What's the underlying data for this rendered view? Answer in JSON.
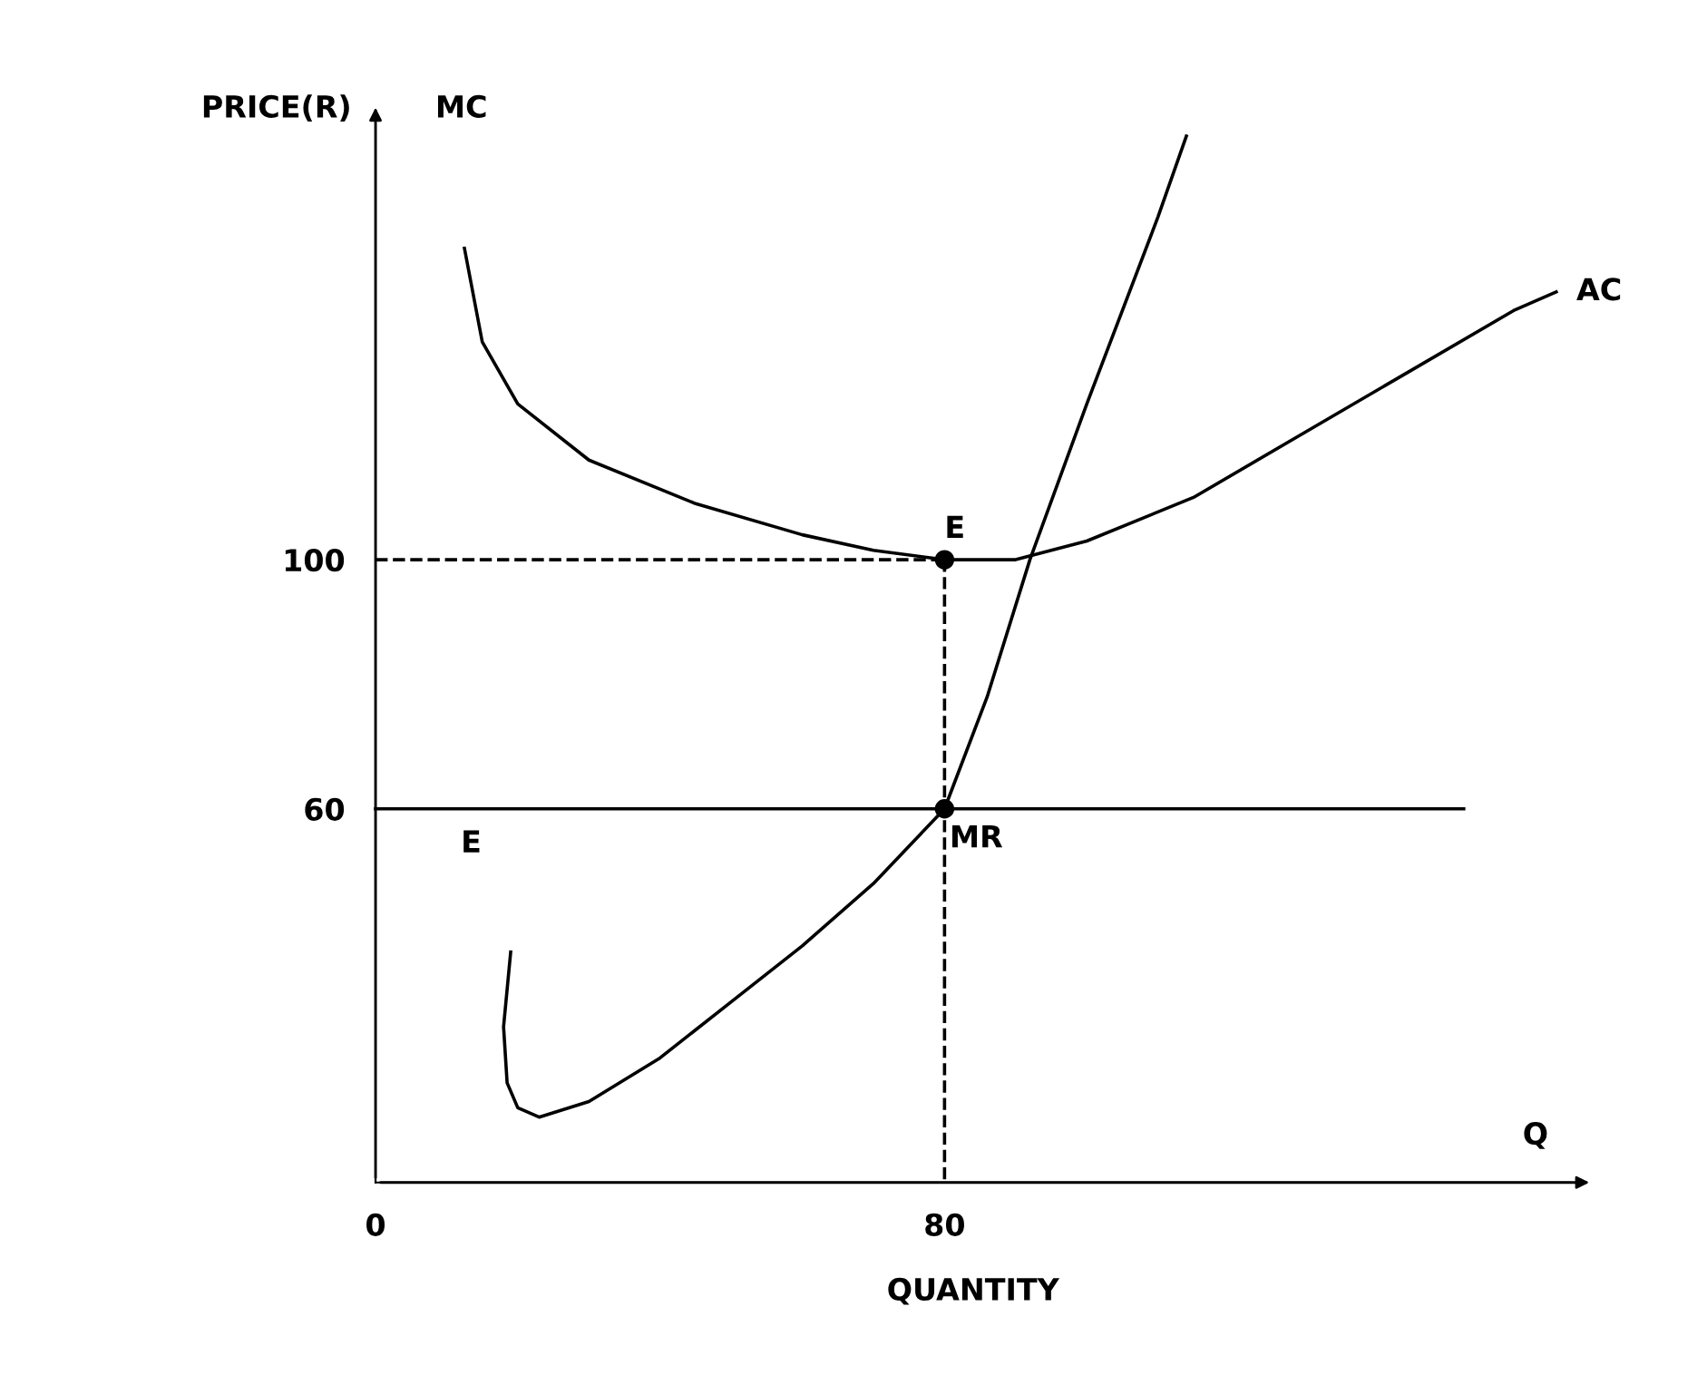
{
  "chart_data": {
    "type": "line",
    "xlabel": "QUANTITY",
    "ylabel": "PRICE(R)",
    "xlim": [
      0,
      168
    ],
    "ylim": [
      0,
      170
    ],
    "xticks": [
      0,
      80
    ],
    "yticks": [
      60,
      100
    ],
    "grid": false,
    "legend": false,
    "series": [
      {
        "color": "#000000",
        "x": [
          12.5,
          15,
          20,
          30,
          45,
          60,
          70,
          80,
          90,
          100,
          115,
          130,
          145,
          160,
          166
        ],
        "values": [
          150,
          135,
          125,
          116,
          109,
          104,
          101.5,
          100,
          100,
          103,
          110,
          120,
          130,
          140,
          143
        ]
      },
      {
        "color": "#000000",
        "x": [
          19,
          18,
          18.5,
          20,
          23,
          30,
          40,
          50,
          60,
          70,
          80,
          86,
          92,
          100,
          110,
          114
        ],
        "values": [
          37,
          25,
          16,
          12,
          10.5,
          13,
          20,
          29,
          38,
          48,
          60,
          78,
          100,
          125,
          155,
          168
        ]
      },
      {
        "color": "#000000",
        "x": [
          0,
          153
        ],
        "values": [
          60,
          60
        ]
      },
      {
        "color": "#000000",
        "x": [
          0,
          80
        ],
        "values": [
          100,
          100
        ],
        "line_style": "dashed"
      },
      {
        "color": "#000000",
        "x": [
          80,
          80
        ],
        "values": [
          100,
          0
        ],
        "line_style": "dashed"
      },
      {
        "type": "scatter",
        "color": "#000000",
        "x": [
          80,
          80
        ],
        "values": [
          100,
          60
        ],
        "marker": "circle"
      }
    ],
    "annotations": [
      "MC",
      {
        "text": "AC",
        "x": 166,
        "y": 143
      },
      {
        "text": "MR",
        "x": 80,
        "y": 60
      },
      {
        "text": "E",
        "x": 80,
        "y": 100
      },
      {
        "text": "E",
        "x": 12,
        "y": 60
      },
      "Q"
    ]
  }
}
